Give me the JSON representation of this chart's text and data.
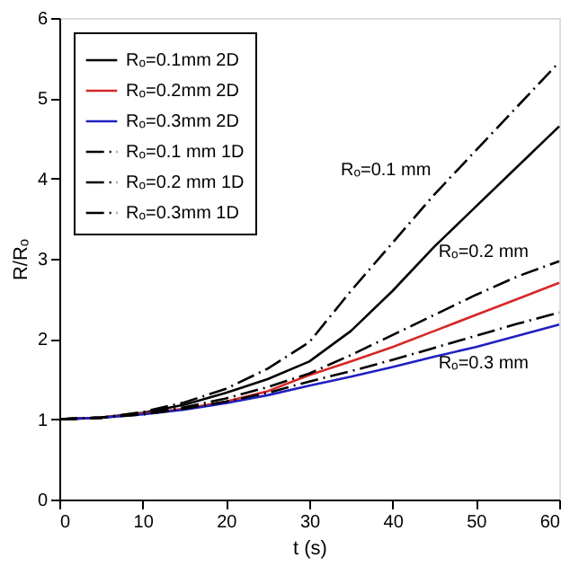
{
  "chart_data": {
    "type": "line",
    "xlabel": "t (s)",
    "ylabel": "R/Rₒ",
    "x": [
      0,
      5,
      10,
      15,
      20,
      25,
      30,
      35,
      40,
      45,
      50,
      55,
      60
    ],
    "series": [
      {
        "name": "Rₒ=0.1mm 2D",
        "color": "#000000",
        "line_style": "solid",
        "values": [
          1,
          1.02,
          1.08,
          1.18,
          1.33,
          1.5,
          1.72,
          2.1,
          2.6,
          3.15,
          3.65,
          4.15,
          4.65
        ]
      },
      {
        "name": "Rₒ=0.2mm 2D",
        "color": "#d62728",
        "line_style": "solid",
        "values": [
          1,
          1.02,
          1.07,
          1.13,
          1.22,
          1.35,
          1.55,
          1.72,
          1.9,
          2.1,
          2.3,
          2.5,
          2.7
        ]
      },
      {
        "name": "Rₒ=0.3mm 2D",
        "color": "#2020c0",
        "line_style": "solid",
        "values": [
          1,
          1.02,
          1.06,
          1.12,
          1.2,
          1.3,
          1.42,
          1.53,
          1.65,
          1.78,
          1.9,
          2.04,
          2.18
        ]
      },
      {
        "name": "Rₒ=0.1 mm 1D",
        "color": "#000000",
        "line_style": "dashed",
        "values": [
          1,
          1.02,
          1.09,
          1.21,
          1.38,
          1.63,
          1.96,
          2.6,
          3.2,
          3.8,
          4.35,
          4.9,
          5.45
        ]
      },
      {
        "name": "Rₒ=0.2 mm 1D",
        "color": "#000000",
        "line_style": "dashed",
        "values": [
          1,
          1.02,
          1.07,
          1.15,
          1.26,
          1.4,
          1.57,
          1.8,
          2.05,
          2.3,
          2.55,
          2.78,
          2.97
        ]
      },
      {
        "name": "Rₒ=0.3mm 1D",
        "color": "#000000",
        "line_style": "dashed",
        "values": [
          1,
          1.02,
          1.06,
          1.13,
          1.22,
          1.33,
          1.47,
          1.6,
          1.74,
          1.89,
          2.04,
          2.19,
          2.33
        ]
      }
    ],
    "xlim": [
      0,
      60
    ],
    "xticks": [
      0,
      10,
      20,
      30,
      40,
      50,
      60
    ],
    "ylim": [
      0,
      6
    ],
    "yticks": [
      0,
      1,
      2,
      3,
      4,
      5,
      6
    ],
    "grid": false,
    "legend": "top left",
    "marker": "none",
    "annotations": [
      "Rₒ=0.1 mm",
      "Rₒ=0.2 mm",
      "Rₒ=0.3 mm"
    ]
  }
}
